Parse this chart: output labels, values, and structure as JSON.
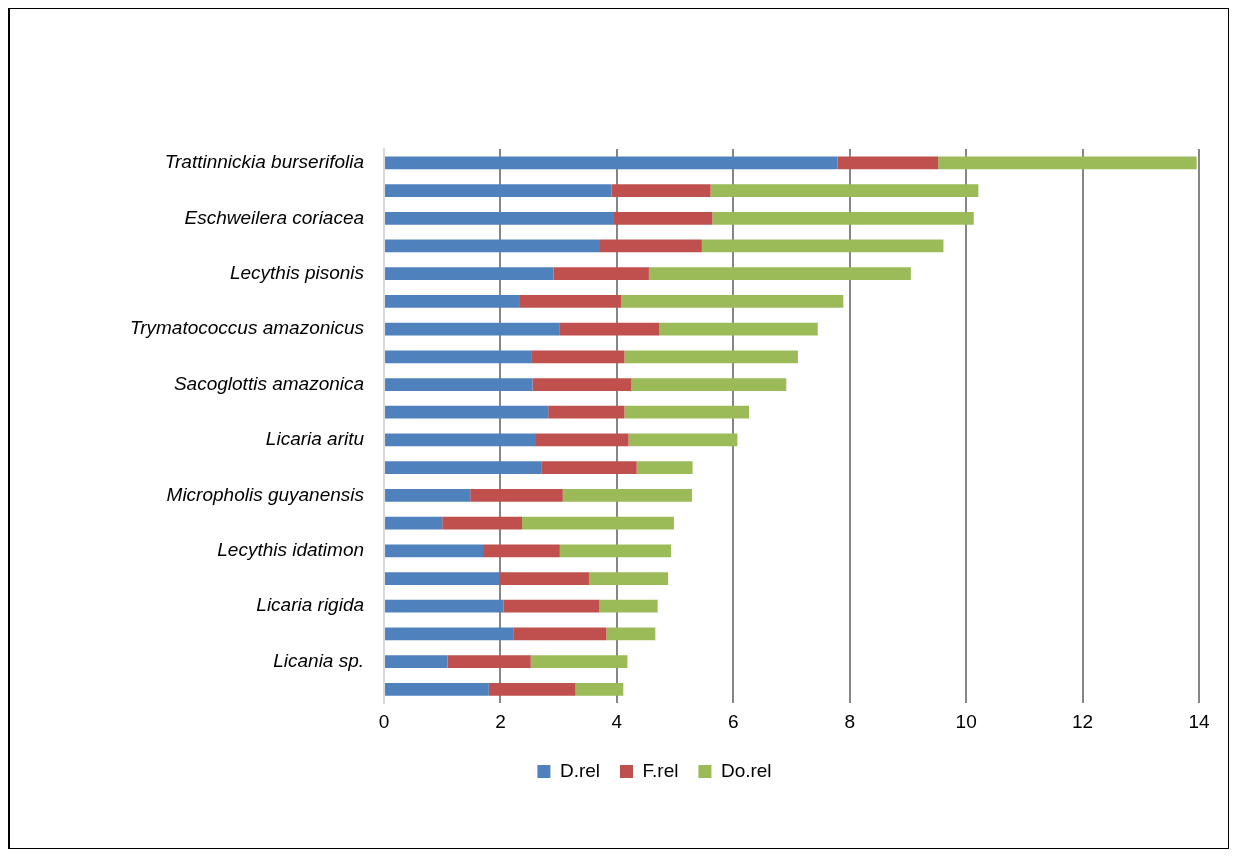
{
  "chart_data": {
    "type": "bar",
    "orientation": "horizontal",
    "stacked": true,
    "categories": [
      "Trattinnickia burserifolia",
      null,
      "Eschweilera coriacea",
      null,
      "Lecythis pisonis",
      null,
      "Trymatococcus amazonicus",
      null,
      "Sacoglottis amazonica",
      null,
      "Licaria aritu",
      null,
      "Micropholis guyanensis",
      null,
      "Lecythis idatimon",
      null,
      "Licaria rigida",
      null,
      "Licania sp.",
      null
    ],
    "series": [
      {
        "name": "D.rel",
        "color": "#4f81bd",
        "values": [
          7.79,
          3.91,
          3.95,
          3.71,
          2.91,
          2.32,
          3.02,
          2.54,
          2.55,
          2.82,
          2.61,
          2.7,
          1.48,
          1.0,
          1.7,
          1.98,
          2.05,
          2.23,
          1.09,
          1.8
        ]
      },
      {
        "name": "F.rel",
        "color": "#c0504d",
        "values": [
          1.73,
          1.7,
          1.69,
          1.75,
          1.64,
          1.75,
          1.71,
          1.59,
          1.7,
          1.31,
          1.59,
          1.64,
          1.59,
          1.37,
          1.32,
          1.54,
          1.65,
          1.59,
          1.43,
          1.49
        ]
      },
      {
        "name": "Do.rel",
        "color": "#9bbb59",
        "values": [
          4.44,
          4.6,
          4.49,
          4.15,
          4.5,
          3.82,
          2.72,
          2.98,
          2.66,
          2.14,
          1.87,
          0.96,
          2.22,
          2.61,
          1.91,
          1.36,
          1.0,
          0.84,
          1.66,
          0.82
        ]
      }
    ],
    "xlim": [
      0,
      14
    ],
    "xticks": [
      0,
      2,
      4,
      6,
      8,
      10,
      12,
      14
    ],
    "grid": "x",
    "legend": "bottom"
  }
}
